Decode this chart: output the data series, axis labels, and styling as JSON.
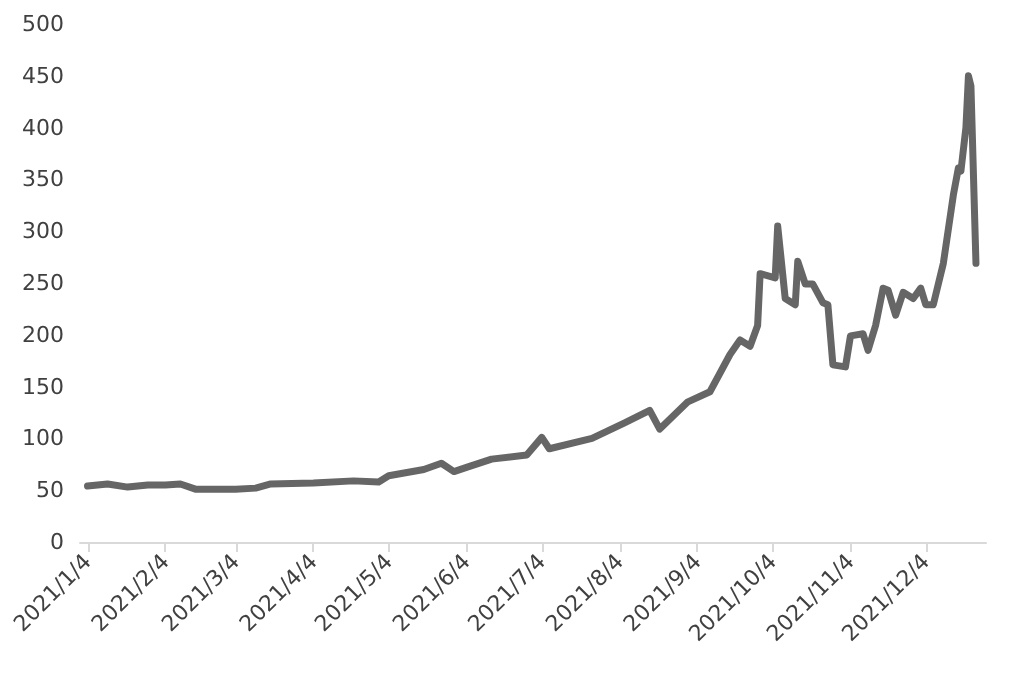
{
  "chart_data": {
    "type": "line",
    "x": [
      "2021-01-04",
      "2021-01-12",
      "2021-01-20",
      "2021-01-28",
      "2021-02-04",
      "2021-02-10",
      "2021-02-16",
      "2021-03-04",
      "2021-03-12",
      "2021-03-18",
      "2021-04-04",
      "2021-04-20",
      "2021-04-30",
      "2021-05-04",
      "2021-05-18",
      "2021-05-25",
      "2021-05-30",
      "2021-06-04",
      "2021-06-14",
      "2021-06-28",
      "2021-07-04",
      "2021-07-07",
      "2021-07-24",
      "2021-08-06",
      "2021-08-16",
      "2021-08-20",
      "2021-08-31",
      "2021-09-09",
      "2021-09-17",
      "2021-09-21",
      "2021-09-25",
      "2021-09-28",
      "2021-09-29",
      "2021-10-05",
      "2021-10-06",
      "2021-10-09",
      "2021-10-13",
      "2021-10-14",
      "2021-10-17",
      "2021-10-20",
      "2021-10-24",
      "2021-10-26",
      "2021-10-28",
      "2021-11-02",
      "2021-11-04",
      "2021-11-09",
      "2021-11-11",
      "2021-11-14",
      "2021-11-17",
      "2021-11-19",
      "2021-11-22",
      "2021-11-25",
      "2021-11-29",
      "2021-12-02",
      "2021-12-04",
      "2021-12-07",
      "2021-12-11",
      "2021-12-15",
      "2021-12-17",
      "2021-12-18",
      "2021-12-20",
      "2021-12-21",
      "2021-12-22",
      "2021-12-24"
    ],
    "series": [
      {
        "color": "#666666",
        "values": [
          54,
          56,
          53,
          55,
          55,
          56,
          51,
          51,
          52,
          56,
          57,
          59,
          58,
          64,
          70,
          76,
          68,
          72,
          80,
          84,
          101,
          90,
          100,
          115,
          127,
          109,
          135,
          145,
          181,
          195,
          189,
          209,
          259,
          255,
          305,
          235,
          229,
          271,
          249,
          249,
          231,
          229,
          171,
          169,
          199,
          201,
          185,
          209,
          245,
          243,
          219,
          241,
          235,
          245,
          229,
          229,
          269,
          335,
          361,
          358,
          400,
          450,
          440,
          269
        ]
      }
    ],
    "xlim": [
      "2021-01-01",
      "2021-12-28"
    ],
    "xticks": [
      {
        "value": "2021-01-04",
        "label": "2021/1/4"
      },
      {
        "value": "2021-02-04",
        "label": "2021/2/4"
      },
      {
        "value": "2021-03-04",
        "label": "2021/3/4"
      },
      {
        "value": "2021-04-04",
        "label": "2021/4/4"
      },
      {
        "value": "2021-05-04",
        "label": "2021/5/4"
      },
      {
        "value": "2021-06-04",
        "label": "2021/6/4"
      },
      {
        "value": "2021-07-04",
        "label": "2021/7/4"
      },
      {
        "value": "2021-08-04",
        "label": "2021/8/4"
      },
      {
        "value": "2021-09-04",
        "label": "2021/9/4"
      },
      {
        "value": "2021-10-04",
        "label": "2021/10/4"
      },
      {
        "value": "2021-11-04",
        "label": "2021/11/4"
      },
      {
        "value": "2021-12-04",
        "label": "2021/12/4"
      }
    ],
    "ylim": [
      0,
      500
    ],
    "yticks": [
      0,
      50,
      100,
      150,
      200,
      250,
      300,
      350,
      400,
      450,
      500
    ],
    "marker": "none",
    "line_style": "solid"
  }
}
